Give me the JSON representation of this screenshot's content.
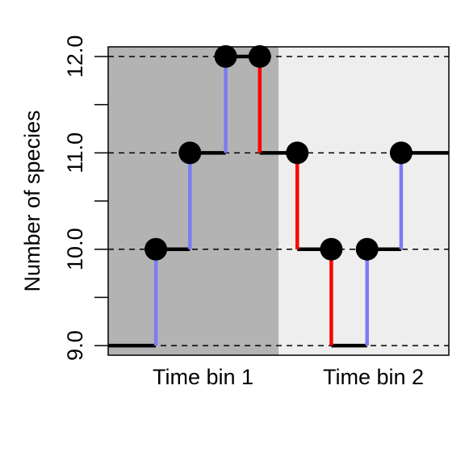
{
  "chart_data": {
    "type": "line",
    "title": "",
    "xlabel": "",
    "ylabel": "Number of species",
    "ylim": [
      8.9,
      12.1
    ],
    "xlim": [
      0,
      1
    ],
    "y_ticks": [
      9.0,
      9.5,
      10.0,
      10.5,
      11.0,
      11.5,
      12.0
    ],
    "y_tick_labels": [
      "9.0",
      "",
      "10.0",
      "",
      "11.0",
      "",
      "12.0"
    ],
    "hgrid_dashed": [
      9.0,
      10.0,
      11.0,
      12.0
    ],
    "bins": [
      {
        "label": "Time bin 1",
        "start": 0.0,
        "end": 0.5,
        "color": "#b3b3b3"
      },
      {
        "label": "Time bin 2",
        "start": 0.5,
        "end": 1.0,
        "color": "#eeeeee"
      }
    ],
    "start_level": 9,
    "events": [
      {
        "x": 0.14,
        "from": 9,
        "to": 10,
        "kind": "origination"
      },
      {
        "x": 0.24,
        "from": 10,
        "to": 11,
        "kind": "origination"
      },
      {
        "x": 0.345,
        "from": 11,
        "to": 12,
        "kind": "origination"
      },
      {
        "x": 0.445,
        "from": 12,
        "to": 11,
        "kind": "extinction"
      },
      {
        "x": 0.555,
        "from": 11,
        "to": 10,
        "kind": "extinction"
      },
      {
        "x": 0.655,
        "from": 10,
        "to": 9,
        "kind": "extinction"
      },
      {
        "x": 0.76,
        "from": 9,
        "to": 10,
        "kind": "origination"
      },
      {
        "x": 0.86,
        "from": 10,
        "to": 11,
        "kind": "origination"
      }
    ],
    "colors": {
      "origination": "#7b7bf2",
      "extinction": "#ff0000",
      "path": "#000000"
    },
    "grid": "horizontal dashed at integer levels"
  }
}
